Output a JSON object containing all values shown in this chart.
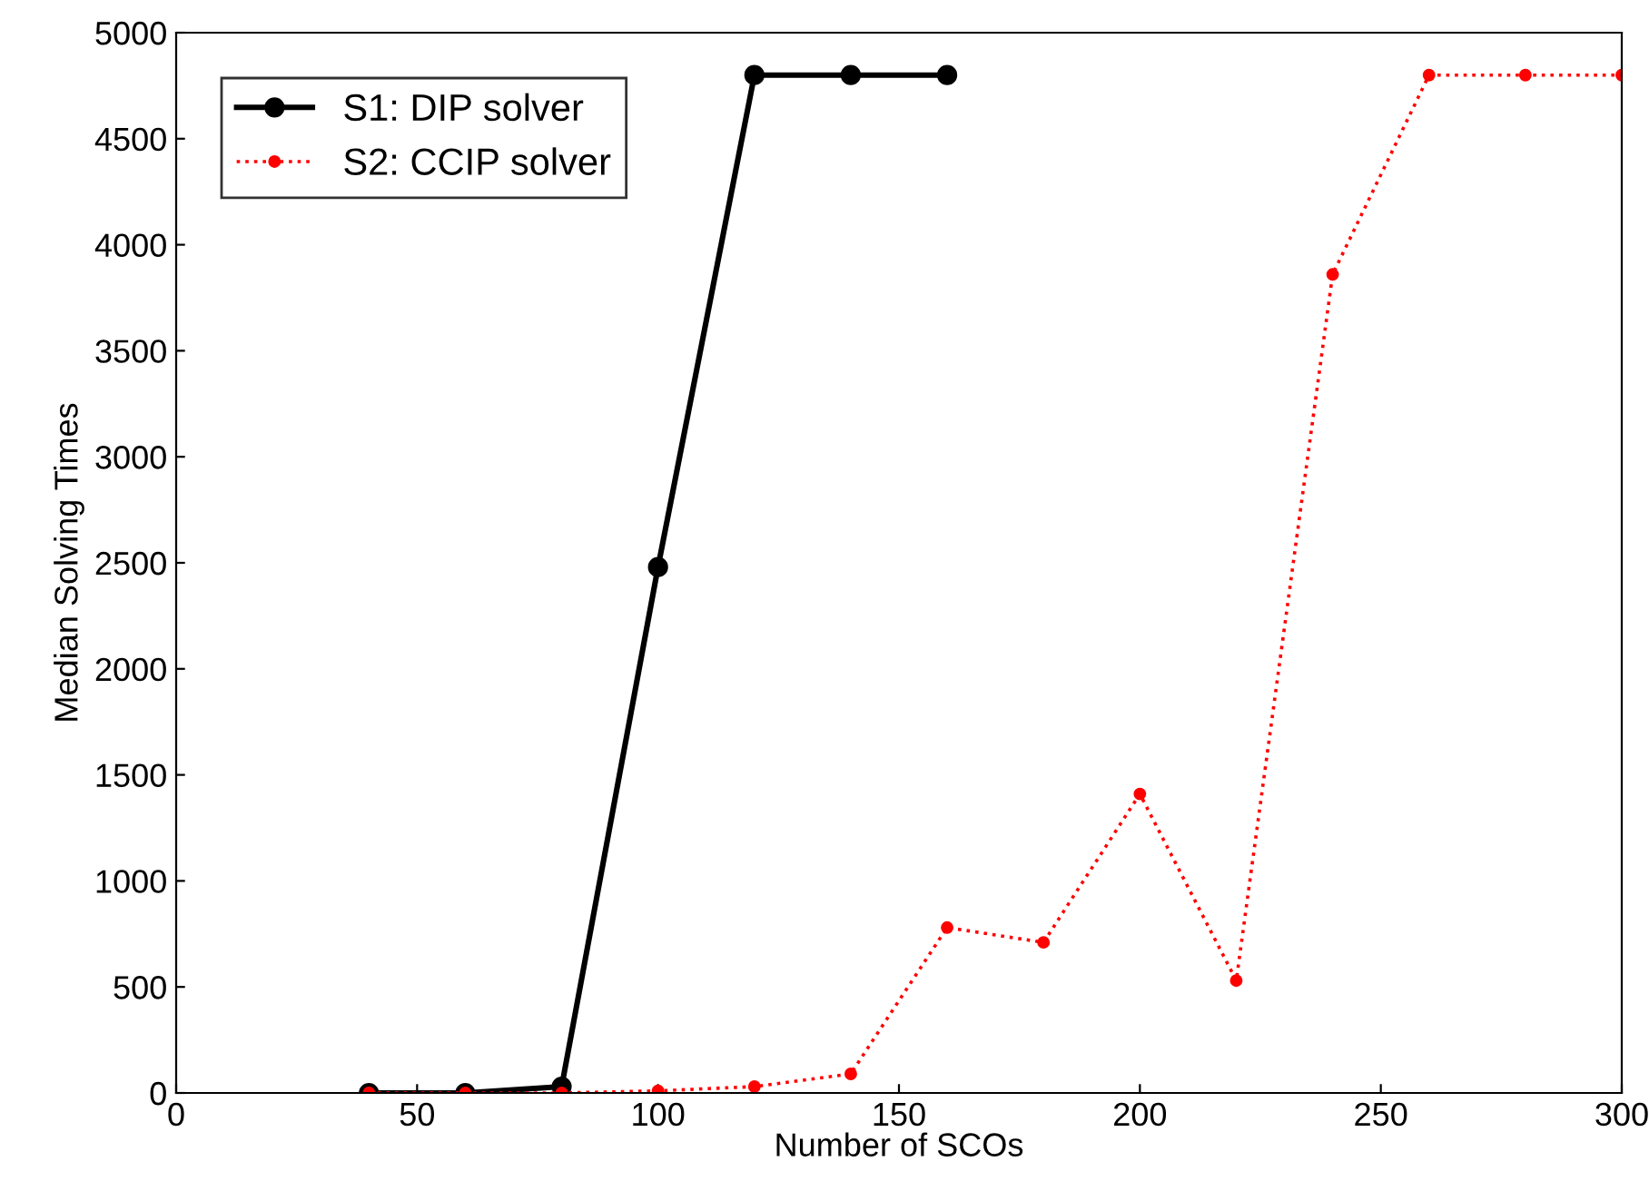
{
  "chart_data": {
    "type": "line",
    "xlabel": "Number of SCOs",
    "ylabel": "Median Solving Times",
    "xlim": [
      0,
      300
    ],
    "xticks": [
      0,
      50,
      100,
      150,
      200,
      250,
      300
    ],
    "ylim": [
      0,
      5000
    ],
    "yticks": [
      0,
      500,
      1000,
      1500,
      2000,
      2500,
      3000,
      3500,
      4000,
      4500,
      5000
    ],
    "grid": false,
    "legend": "top left",
    "marker": "circle",
    "series": [
      {
        "name": "S1: DIP solver",
        "color": "#000000",
        "line_style": "solid",
        "x": [
          40,
          60,
          80,
          100,
          120,
          140,
          160
        ],
        "values": [
          0,
          0,
          30,
          2480,
          4800,
          4800,
          4800
        ]
      },
      {
        "name": "S2: CCIP solver",
        "color": "#ff0000",
        "line_style": "dotted",
        "x": [
          40,
          60,
          80,
          100,
          120,
          140,
          160,
          180,
          200,
          220,
          240,
          260,
          280,
          300
        ],
        "values": [
          0,
          0,
          0,
          10,
          30,
          90,
          780,
          710,
          1410,
          530,
          3860,
          4800,
          4800,
          4800
        ]
      }
    ]
  }
}
